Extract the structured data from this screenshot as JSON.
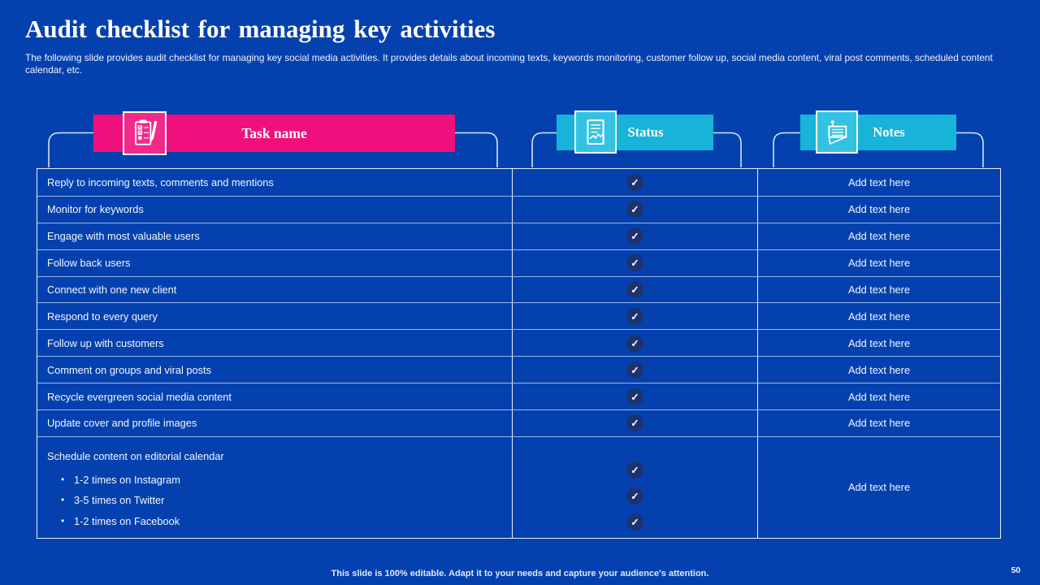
{
  "slide": {
    "title": "Audit checklist for managing key activities",
    "description": "The following slide provides audit checklist for managing key social media activities. It provides details about incoming texts, keywords monitoring, customer follow up, social media content, viral post comments, scheduled content calendar, etc.",
    "footer": "This slide is 100% editable. Adapt it to your needs and capture your audience's attention.",
    "page_number": "50"
  },
  "colors": {
    "background": "#0441ae",
    "task_banner": "#f0107d",
    "task_icon_box": "#f32a8b",
    "status_banner": "#17b3d8",
    "status_icon_box": "#35c2e2",
    "check_circle": "#1c336f",
    "row_line": "#9db6ec",
    "table_border": "#e9f0fe",
    "connector": "#d9e3f7"
  },
  "columns": [
    {
      "label": "Task name",
      "icon": "checklist-pen-icon"
    },
    {
      "label": "Status",
      "icon": "report-chart-icon"
    },
    {
      "label": "Notes",
      "icon": "sticky-note-icon"
    }
  ],
  "table": {
    "check_glyph": "✓",
    "rows": [
      {
        "task": "Reply to incoming texts, comments and mentions",
        "checks": 1,
        "note": "Add text here"
      },
      {
        "task": "Monitor for keywords",
        "checks": 1,
        "note": "Add text here"
      },
      {
        "task": "Engage with most valuable users",
        "checks": 1,
        "note": "Add text here"
      },
      {
        "task": "Follow back users",
        "checks": 1,
        "note": "Add text here"
      },
      {
        "task": "Connect with one new client",
        "checks": 1,
        "note": "Add text here"
      },
      {
        "task": "Respond to every query",
        "checks": 1,
        "note": "Add text here"
      },
      {
        "task": "Follow up with customers",
        "checks": 1,
        "note": "Add text here"
      },
      {
        "task": "Comment on groups and viral posts",
        "checks": 1,
        "note": "Add text here"
      },
      {
        "task": "Recycle evergreen social media content",
        "checks": 1,
        "note": "Add text here"
      },
      {
        "task": "Update cover and profile images",
        "checks": 1,
        "note": "Add text here"
      },
      {
        "task": "Schedule content on editorial calendar",
        "bullets": [
          "1-2 times on Instagram",
          "3-5 times on Twitter",
          "1-2 times on Facebook"
        ],
        "checks": 3,
        "note": "Add text here"
      }
    ]
  }
}
